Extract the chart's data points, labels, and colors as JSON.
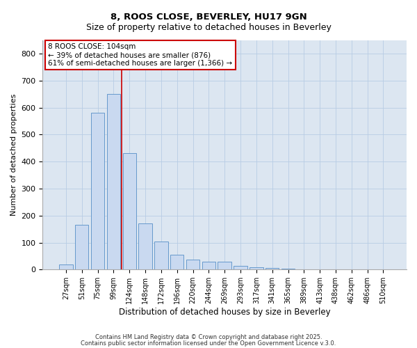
{
  "title1": "8, ROOS CLOSE, BEVERLEY, HU17 9GN",
  "title2": "Size of property relative to detached houses in Beverley",
  "xlabel": "Distribution of detached houses by size in Beverley",
  "ylabel": "Number of detached properties",
  "bar_labels": [
    "27sqm",
    "51sqm",
    "75sqm",
    "99sqm",
    "124sqm",
    "148sqm",
    "172sqm",
    "196sqm",
    "220sqm",
    "244sqm",
    "269sqm",
    "293sqm",
    "317sqm",
    "341sqm",
    "365sqm",
    "389sqm",
    "413sqm",
    "438sqm",
    "462sqm",
    "486sqm",
    "510sqm"
  ],
  "bar_values": [
    20,
    165,
    580,
    650,
    430,
    170,
    103,
    55,
    38,
    30,
    30,
    15,
    8,
    5,
    3,
    2,
    0,
    0,
    0,
    0,
    2
  ],
  "bar_color": "#c9d9f0",
  "bar_edge_color": "#6699cc",
  "vline_x": 3.5,
  "vline_color": "#cc0000",
  "annotation_text1": "8 ROOS CLOSE: 104sqm",
  "annotation_text2": "← 39% of detached houses are smaller (876)",
  "annotation_text3": "61% of semi-detached houses are larger (1,366) →",
  "annotation_box_color": "#cc0000",
  "ylim": [
    0,
    850
  ],
  "yticks": [
    0,
    100,
    200,
    300,
    400,
    500,
    600,
    700,
    800
  ],
  "grid_color": "#b8cce4",
  "bg_color": "#dce6f1",
  "footer1": "Contains HM Land Registry data © Crown copyright and database right 2025.",
  "footer2": "Contains public sector information licensed under the Open Government Licence v.3.0."
}
